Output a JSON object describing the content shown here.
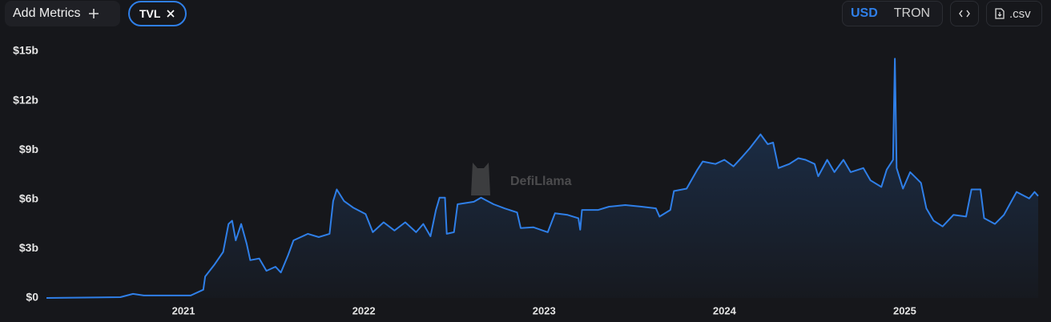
{
  "toolbar": {
    "add_metrics": "Add Metrics",
    "metric": "TVL",
    "currencies": [
      "USD",
      "TRON"
    ],
    "csv": ".csv"
  },
  "chart_data": {
    "type": "area",
    "watermark": "DefiLlama",
    "series": [
      {
        "name": "TVL",
        "color": "#2f7fe8",
        "x": [
          2020.24,
          2020.65,
          2020.72,
          2020.78,
          2021.04,
          2021.11,
          2021.12,
          2021.17,
          2021.22,
          2021.25,
          2021.27,
          2021.29,
          2021.32,
          2021.35,
          2021.37,
          2021.42,
          2021.46,
          2021.51,
          2021.54,
          2021.58,
          2021.61,
          2021.69,
          2021.75,
          2021.81,
          2021.83,
          2021.85,
          2021.89,
          2021.94,
          2022.01,
          2022.05,
          2022.11,
          2022.17,
          2022.23,
          2022.29,
          2022.33,
          2022.37,
          2022.4,
          2022.42,
          2022.45,
          2022.46,
          2022.5,
          2022.52,
          2022.61,
          2022.65,
          2022.72,
          2022.78,
          2022.85,
          2022.87,
          2022.94,
          2023.02,
          2023.06,
          2023.13,
          2023.19,
          2023.2,
          2023.21,
          2023.3,
          2023.36,
          2023.45,
          2023.54,
          2023.62,
          2023.64,
          2023.7,
          2023.72,
          2023.79,
          2023.85,
          2023.88,
          2023.95,
          2024.0,
          2024.05,
          2024.1,
          2024.14,
          2024.2,
          2024.24,
          2024.27,
          2024.3,
          2024.36,
          2024.41,
          2024.45,
          2024.5,
          2024.52,
          2024.57,
          2024.61,
          2024.66,
          2024.7,
          2024.77,
          2024.81,
          2024.87,
          2024.9,
          2024.935,
          2024.945,
          2024.955,
          2024.99,
          2025.03,
          2025.09,
          2025.12,
          2025.16,
          2025.21,
          2025.27,
          2025.34,
          2025.37,
          2025.42,
          2025.44,
          2025.5,
          2025.55,
          2025.62,
          2025.69,
          2025.72,
          2025.74
        ],
        "values": [
          0,
          0.05,
          0.25,
          0.15,
          0.15,
          0.5,
          1.3,
          2.0,
          2.8,
          4.5,
          4.7,
          3.5,
          4.5,
          3.3,
          2.3,
          2.4,
          1.65,
          1.9,
          1.55,
          2.6,
          3.5,
          3.9,
          3.7,
          3.9,
          5.9,
          6.6,
          5.9,
          5.5,
          5.1,
          4.0,
          4.6,
          4.1,
          4.6,
          4.0,
          4.5,
          3.75,
          5.35,
          6.1,
          6.1,
          3.9,
          4.0,
          5.7,
          5.85,
          6.1,
          5.7,
          5.45,
          5.2,
          4.25,
          4.3,
          4.0,
          5.15,
          5.05,
          4.85,
          4.15,
          5.35,
          5.35,
          5.55,
          5.65,
          5.55,
          5.45,
          4.95,
          5.35,
          6.5,
          6.65,
          7.8,
          8.3,
          8.15,
          8.4,
          8.0,
          8.6,
          9.1,
          9.95,
          9.35,
          9.45,
          7.9,
          8.15,
          8.5,
          8.4,
          8.15,
          7.4,
          8.4,
          7.65,
          8.4,
          7.65,
          7.9,
          7.15,
          6.75,
          7.8,
          8.4,
          14.55,
          7.9,
          6.65,
          7.65,
          7.0,
          5.45,
          4.7,
          4.35,
          5.05,
          4.95,
          6.6,
          6.6,
          4.85,
          4.5,
          5.05,
          6.45,
          6.05,
          6.45,
          6.2
        ]
      }
    ],
    "xlim": [
      2020.24,
      2025.74
    ],
    "xticks": [
      2021,
      2022,
      2023,
      2024,
      2025
    ],
    "ylim": [
      0,
      15
    ],
    "yticks": [
      {
        "value": 0,
        "label": "$0"
      },
      {
        "value": 3,
        "label": "$3b"
      },
      {
        "value": 6,
        "label": "$6b"
      },
      {
        "value": 9,
        "label": "$9b"
      },
      {
        "value": 12,
        "label": "$12b"
      },
      {
        "value": 15,
        "label": "$15b"
      }
    ],
    "grid": false
  }
}
